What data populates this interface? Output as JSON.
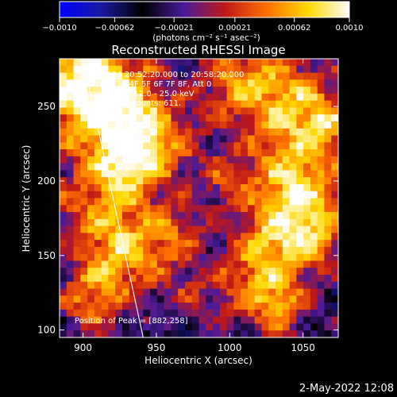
{
  "chart_data": {
    "type": "heatmap",
    "title": "Reconstructed RHESSI Image",
    "xlabel": "Heliocentric X (arcsec)",
    "ylabel": "Heliocentric Y (arcsec)",
    "xlim": [
      884,
      1074
    ],
    "ylim": [
      95,
      282
    ],
    "x_ticks": [
      900,
      950,
      1000,
      1050
    ],
    "y_ticks": [
      100,
      150,
      200,
      250
    ],
    "x_tick_labels": [
      "900",
      "950",
      "1000",
      "1050"
    ],
    "y_tick_labels": [
      "100",
      "150",
      "200",
      "250"
    ],
    "colorbar": {
      "min": -0.001,
      "max": 0.001,
      "ticks": [
        -0.001,
        -0.00062,
        -0.00021,
        0.00021,
        0.00062,
        0.001
      ],
      "tick_labels": [
        "−0.0010",
        "−0.00062",
        "−0.00021",
        "0.00021",
        "0.00062",
        "0.0010"
      ],
      "unit_label": "(photons cm⁻² s⁻¹ asec⁻²)",
      "colormap": [
        "#0000ff",
        "#1a1aa0",
        "#000000",
        "#4a1a9a",
        "#c01818",
        "#ff7000",
        "#ffd800",
        "#ffffff"
      ]
    },
    "annotations": [
      "28-Jun-2004 20:52:20.000 to 20:58:20.000",
      "Detectors: 3F 4F 5F 6F 7F 8F, Att 0",
      "Energy Range: 12.0 - 25.0 keV",
      "Clean      Total counts: 611."
    ],
    "peak_label": "Position of Peak = [882,258]",
    "peak": [
      882,
      258
    ],
    "limb_line": [
      [
        900,
        282
      ],
      [
        941,
        95
      ]
    ],
    "grid": false,
    "legend": "none"
  },
  "footer_timestamp": "2-May-2022 12:08"
}
